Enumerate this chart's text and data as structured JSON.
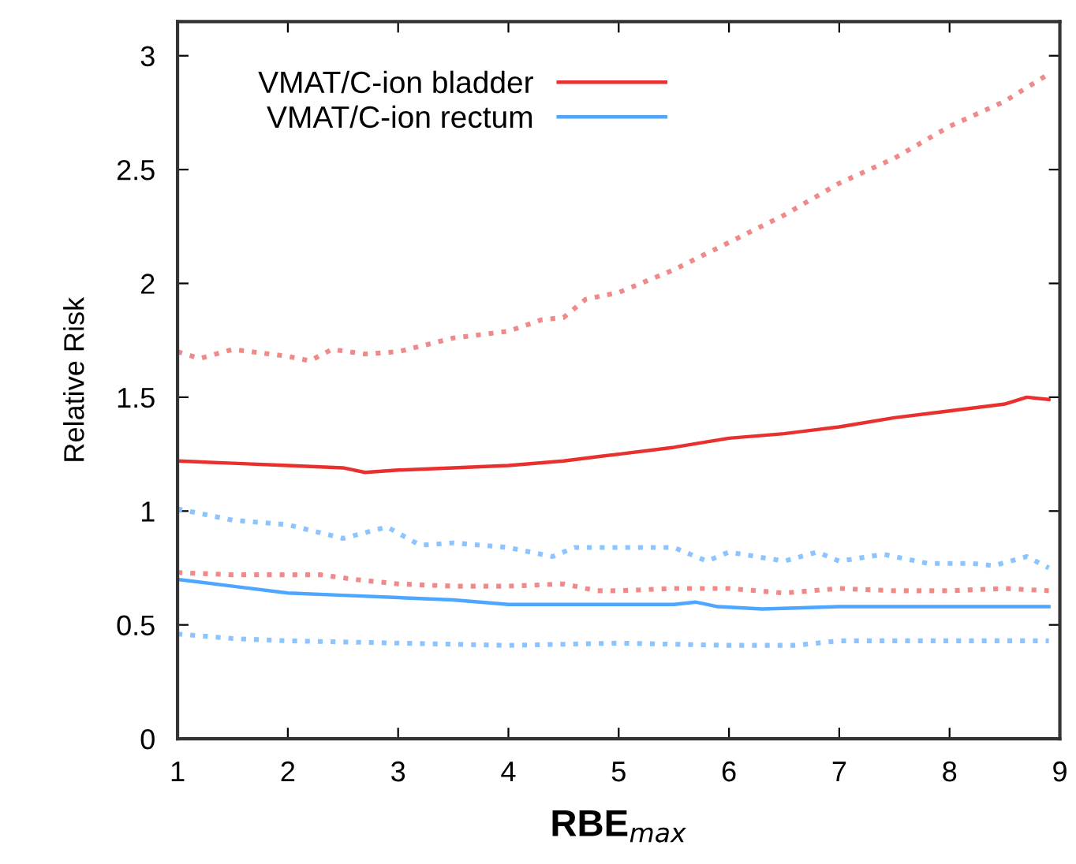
{
  "chart_data": {
    "type": "line",
    "xlabel": "RBE$_{max}$",
    "ylabel": "Relative Risk",
    "xlim": [
      1,
      9
    ],
    "ylim": [
      0,
      3.15
    ],
    "xticks": [
      1,
      2,
      3,
      4,
      5,
      6,
      7,
      8,
      9
    ],
    "yticks": [
      0,
      0.5,
      1,
      1.5,
      2,
      2.5,
      3
    ],
    "grid": false,
    "legend": "top left",
    "marker": "none",
    "series": [
      {
        "name": "VMAT/C-ion bladder",
        "color": "#e8312f",
        "line_style": "solid",
        "x": [
          1,
          1.5,
          2,
          2.5,
          2.7,
          3,
          3.5,
          4,
          4.5,
          5,
          5.5,
          6,
          6.5,
          7,
          7.5,
          8,
          8.5,
          8.7,
          8.9
        ],
        "values": [
          1.22,
          1.21,
          1.2,
          1.19,
          1.17,
          1.18,
          1.19,
          1.2,
          1.22,
          1.25,
          1.28,
          1.32,
          1.34,
          1.37,
          1.41,
          1.44,
          1.47,
          1.5,
          1.49
        ]
      },
      {
        "name": "VMAT/C-ion rectum",
        "color": "#4da6ff",
        "line_style": "solid",
        "x": [
          1,
          1.5,
          2,
          2.5,
          3,
          3.5,
          4,
          4.5,
          5,
          5.5,
          5.7,
          5.9,
          6.3,
          7,
          7.5,
          8,
          8.5,
          8.9
        ],
        "values": [
          0.7,
          0.67,
          0.64,
          0.63,
          0.62,
          0.61,
          0.59,
          0.59,
          0.59,
          0.59,
          0.6,
          0.58,
          0.57,
          0.58,
          0.58,
          0.58,
          0.58,
          0.58
        ]
      },
      {
        "color": "#f08a8a",
        "line_style": "dotted",
        "x": [
          1,
          1.2,
          1.5,
          2,
          2.2,
          2.4,
          2.7,
          3,
          3.5,
          4,
          4.3,
          4.5,
          4.7,
          5,
          5.5,
          6,
          6.5,
          7,
          7.5,
          8,
          8.5,
          8.9
        ],
        "values": [
          1.7,
          1.67,
          1.71,
          1.68,
          1.66,
          1.71,
          1.69,
          1.7,
          1.76,
          1.79,
          1.84,
          1.85,
          1.93,
          1.96,
          2.06,
          2.18,
          2.3,
          2.44,
          2.55,
          2.69,
          2.8,
          2.92
        ]
      },
      {
        "color": "#f08a8a",
        "line_style": "dotted",
        "x": [
          1,
          1.5,
          2,
          2.3,
          2.6,
          3,
          3.5,
          4,
          4.5,
          4.8,
          5,
          5.5,
          6,
          6.5,
          7,
          7.5,
          8,
          8.5,
          8.9
        ],
        "values": [
          0.73,
          0.72,
          0.72,
          0.72,
          0.7,
          0.68,
          0.67,
          0.67,
          0.68,
          0.65,
          0.65,
          0.66,
          0.66,
          0.64,
          0.66,
          0.65,
          0.65,
          0.66,
          0.65
        ]
      },
      {
        "color": "#8cc4ff",
        "line_style": "dotted",
        "x": [
          1,
          1.5,
          2,
          2.5,
          2.9,
          3.2,
          3.5,
          4,
          4.4,
          4.6,
          5,
          5.5,
          5.8,
          6,
          6.5,
          6.8,
          7,
          7.4,
          7.8,
          8.2,
          8.4,
          8.7,
          8.9
        ],
        "values": [
          1.01,
          0.96,
          0.94,
          0.88,
          0.93,
          0.85,
          0.86,
          0.84,
          0.8,
          0.84,
          0.84,
          0.84,
          0.78,
          0.82,
          0.78,
          0.82,
          0.78,
          0.81,
          0.77,
          0.77,
          0.76,
          0.8,
          0.75
        ]
      },
      {
        "color": "#8cc4ff",
        "line_style": "dotted",
        "x": [
          1,
          1.5,
          2,
          3,
          4,
          5,
          6,
          6.6,
          7,
          8,
          8.9
        ],
        "values": [
          0.46,
          0.44,
          0.43,
          0.42,
          0.41,
          0.42,
          0.41,
          0.41,
          0.43,
          0.43,
          0.43
        ]
      }
    ]
  }
}
